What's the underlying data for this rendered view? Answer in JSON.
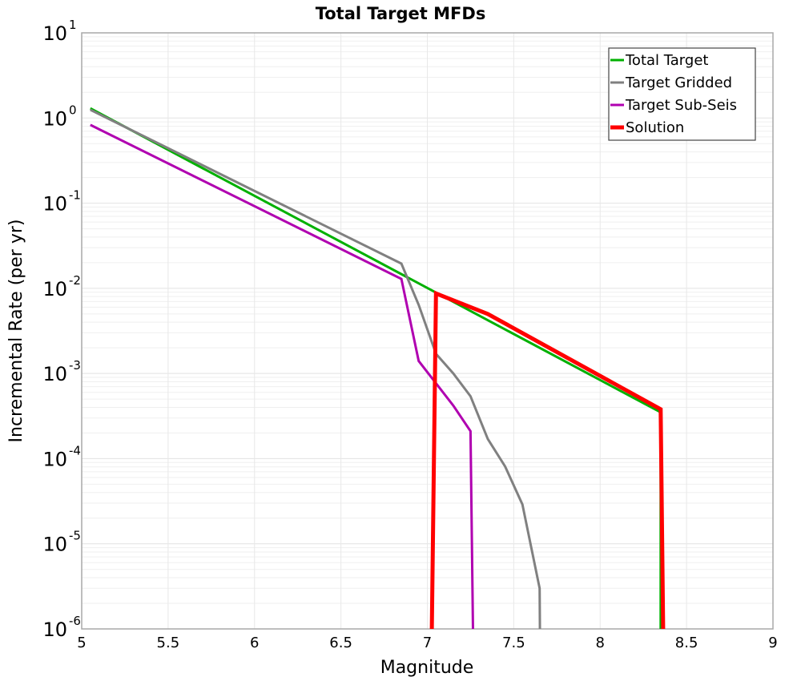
{
  "chart_data": {
    "type": "line",
    "title": "Total Target MFDs",
    "xlabel": "Magnitude",
    "ylabel": "Incremental Rate (per yr)",
    "xlim": [
      5,
      9
    ],
    "ylim": [
      1e-06,
      10
    ],
    "yscale": "log",
    "grid": true,
    "legend_position": "upper right",
    "x_ticks": [
      "5",
      "5.5",
      "6",
      "6.5",
      "7",
      "7.5",
      "8",
      "8.5",
      "9"
    ],
    "y_ticks": [
      {
        "base": "10",
        "exp": "1"
      },
      {
        "base": "10",
        "exp": "0"
      },
      {
        "base": "10",
        "exp": "-1"
      },
      {
        "base": "10",
        "exp": "-2"
      },
      {
        "base": "10",
        "exp": "-3"
      },
      {
        "base": "10",
        "exp": "-4"
      },
      {
        "base": "10",
        "exp": "-5"
      },
      {
        "base": "10",
        "exp": "-6"
      }
    ],
    "series": [
      {
        "name": "Total Target",
        "color": "#00b000",
        "width": 3,
        "points": [
          [
            5.05,
            1.3
          ],
          [
            7.05,
            0.0089
          ],
          [
            8.35,
            0.00035
          ],
          [
            8.35,
            1e-07
          ]
        ]
      },
      {
        "name": "Target Gridded",
        "color": "#808080",
        "width": 3,
        "points": [
          [
            5.05,
            1.25
          ],
          [
            6.85,
            0.0195
          ],
          [
            6.95,
            0.0064
          ],
          [
            7.05,
            0.0017
          ],
          [
            7.15,
            0.001
          ],
          [
            7.25,
            0.00054
          ],
          [
            7.35,
            0.00017
          ],
          [
            7.45,
            8.1e-05
          ],
          [
            7.55,
            2.9e-05
          ],
          [
            7.65,
            3e-06
          ],
          [
            7.655,
            1e-07
          ]
        ]
      },
      {
        "name": "Target Sub-Seis",
        "color": "#b000b0",
        "width": 3,
        "points": [
          [
            5.05,
            0.83
          ],
          [
            6.85,
            0.0129
          ],
          [
            6.95,
            0.0014
          ],
          [
            7.15,
            0.00042
          ],
          [
            7.25,
            0.00021
          ],
          [
            7.27,
            1e-07
          ]
        ]
      },
      {
        "name": "Solution",
        "color": "#ff0000",
        "width": 5,
        "points": [
          [
            7.02,
            1e-07
          ],
          [
            7.05,
            0.0087
          ],
          [
            7.35,
            0.005
          ],
          [
            8.35,
            0.00038
          ],
          [
            8.37,
            1e-07
          ]
        ]
      }
    ]
  },
  "legend": {
    "items": [
      {
        "label": "Total Target",
        "color": "#00b000"
      },
      {
        "label": "Target Gridded",
        "color": "#808080"
      },
      {
        "label": "Target Sub-Seis",
        "color": "#b000b0"
      },
      {
        "label": "Solution",
        "color": "#ff0000"
      }
    ]
  }
}
